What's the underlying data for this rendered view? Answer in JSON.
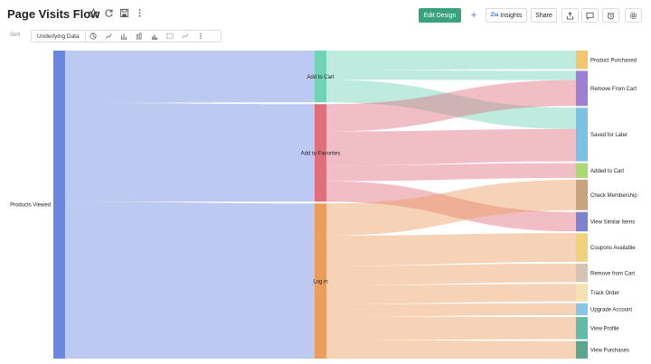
{
  "header": {
    "title": "Page Visits Flow",
    "edit_design": "Edit Design",
    "add": "+",
    "insights_prefix": "Zia",
    "insights": "Insights",
    "share": "Share"
  },
  "toolbar": {
    "sort": "Sort",
    "underlying_data": "Underlying Data"
  },
  "chart_data": {
    "type": "sankey",
    "nodes": [
      {
        "id": "products_viewed",
        "label": "Products Viewed",
        "color": "#6a87e0",
        "column": 0
      },
      {
        "id": "add_to_cart",
        "label": "Add to Cart",
        "color": "#6fd3b5",
        "column": 1
      },
      {
        "id": "add_to_favorites",
        "label": "Add to Favorites",
        "color": "#e06f7e",
        "column": 1
      },
      {
        "id": "login",
        "label": "Log in",
        "color": "#eb9d5e",
        "column": 1
      },
      {
        "id": "product_purchased",
        "label": "Product Purchased",
        "color": "#f2c66a",
        "column": 2
      },
      {
        "id": "remove_from_cart",
        "label": "Remove From Cart",
        "color": "#9b80d4",
        "column": 2
      },
      {
        "id": "saved_for_later",
        "label": "Saved for Later",
        "color": "#79c2e6",
        "column": 2
      },
      {
        "id": "added_to_cart",
        "label": "Added to Cart",
        "color": "#a8da72",
        "column": 2
      },
      {
        "id": "check_membership",
        "label": "Check Membership",
        "color": "#c9a27e",
        "column": 2
      },
      {
        "id": "view_similar_items",
        "label": "View Similar Items",
        "color": "#7d83cf",
        "column": 2
      },
      {
        "id": "coupons_available",
        "label": "Coupons Available",
        "color": "#f0d27c",
        "column": 2
      },
      {
        "id": "remove_from_cart_2",
        "label": "Remove from Cart",
        "color": "#d6c3b6",
        "column": 2
      },
      {
        "id": "track_order",
        "label": "Track Order",
        "color": "#f5e2b0",
        "column": 2
      },
      {
        "id": "upgrade_account",
        "label": "Upgrade Account",
        "color": "#86c6e6",
        "column": 2
      },
      {
        "id": "view_profile",
        "label": "View Profile",
        "color": "#5ebca7",
        "column": 2
      },
      {
        "id": "view_purchases",
        "label": "View Purchases",
        "color": "#5aa68f",
        "column": 2
      }
    ],
    "links": [
      {
        "source": "products_viewed",
        "target": "add_to_cart",
        "value": 53
      },
      {
        "source": "products_viewed",
        "target": "add_to_favorites",
        "value": 100
      },
      {
        "source": "products_viewed",
        "target": "login",
        "value": 159
      },
      {
        "source": "add_to_cart",
        "target": "product_purchased",
        "value": 20
      },
      {
        "source": "add_to_cart",
        "target": "remove_from_cart",
        "value": 10
      },
      {
        "source": "add_to_cart",
        "target": "saved_for_later",
        "value": 23
      },
      {
        "source": "add_to_favorites",
        "target": "remove_from_cart",
        "value": 28
      },
      {
        "source": "add_to_favorites",
        "target": "saved_for_later",
        "value": 35
      },
      {
        "source": "add_to_favorites",
        "target": "added_to_cart",
        "value": 16
      },
      {
        "source": "add_to_favorites",
        "target": "view_similar_items",
        "value": 21
      },
      {
        "source": "login",
        "target": "check_membership",
        "value": 33
      },
      {
        "source": "login",
        "target": "coupons_available",
        "value": 31
      },
      {
        "source": "login",
        "target": "remove_from_cart_2",
        "value": 20
      },
      {
        "source": "login",
        "target": "track_order",
        "value": 19
      },
      {
        "source": "login",
        "target": "upgrade_account",
        "value": 13
      },
      {
        "source": "login",
        "target": "view_profile",
        "value": 24
      },
      {
        "source": "login",
        "target": "view_purchases",
        "value": 19
      }
    ]
  }
}
